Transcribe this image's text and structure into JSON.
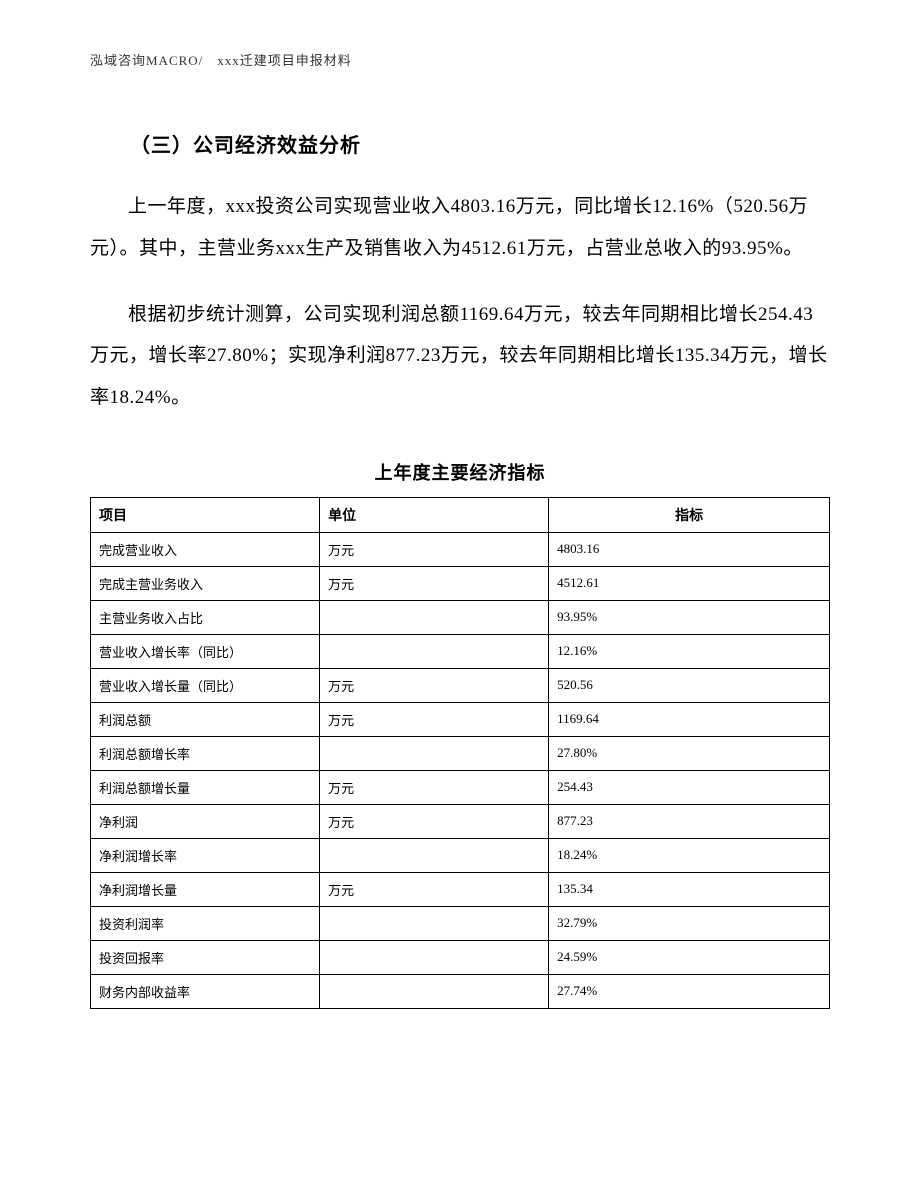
{
  "header": {
    "text": "泓域咨询MACRO/　xxx迁建项目申报材料"
  },
  "section": {
    "title": "（三）公司经济效益分析"
  },
  "paragraphs": {
    "p1": "上一年度，xxx投资公司实现营业收入4803.16万元，同比增长12.16%（520.56万元）。其中，主营业务xxx生产及销售收入为4512.61万元，占营业总收入的93.95%。",
    "p2": "根据初步统计测算，公司实现利润总额1169.64万元，较去年同期相比增长254.43万元，增长率27.80%；实现净利润877.23万元，较去年同期相比增长135.34万元，增长率18.24%。"
  },
  "table": {
    "title": "上年度主要经济指标",
    "columns": [
      "项目",
      "单位",
      "指标"
    ],
    "rows": [
      {
        "c1": "完成营业收入",
        "c2": "万元",
        "c3": "4803.16"
      },
      {
        "c1": "完成主营业务收入",
        "c2": "万元",
        "c3": "4512.61"
      },
      {
        "c1": "主营业务收入占比",
        "c2": "",
        "c3": "93.95%"
      },
      {
        "c1": "营业收入增长率（同比）",
        "c2": "",
        "c3": "12.16%"
      },
      {
        "c1": "营业收入增长量（同比）",
        "c2": "万元",
        "c3": "520.56"
      },
      {
        "c1": "利润总额",
        "c2": "万元",
        "c3": "1169.64"
      },
      {
        "c1": "利润总额增长率",
        "c2": "",
        "c3": "27.80%"
      },
      {
        "c1": "利润总额增长量",
        "c2": "万元",
        "c3": "254.43"
      },
      {
        "c1": "净利润",
        "c2": "万元",
        "c3": "877.23"
      },
      {
        "c1": "净利润增长率",
        "c2": "",
        "c3": "18.24%"
      },
      {
        "c1": "净利润增长量",
        "c2": "万元",
        "c3": "135.34"
      },
      {
        "c1": "投资利润率",
        "c2": "",
        "c3": "32.79%"
      },
      {
        "c1": "投资回报率",
        "c2": "",
        "c3": "24.59%"
      },
      {
        "c1": "财务内部收益率",
        "c2": "",
        "c3": "27.74%"
      }
    ]
  }
}
